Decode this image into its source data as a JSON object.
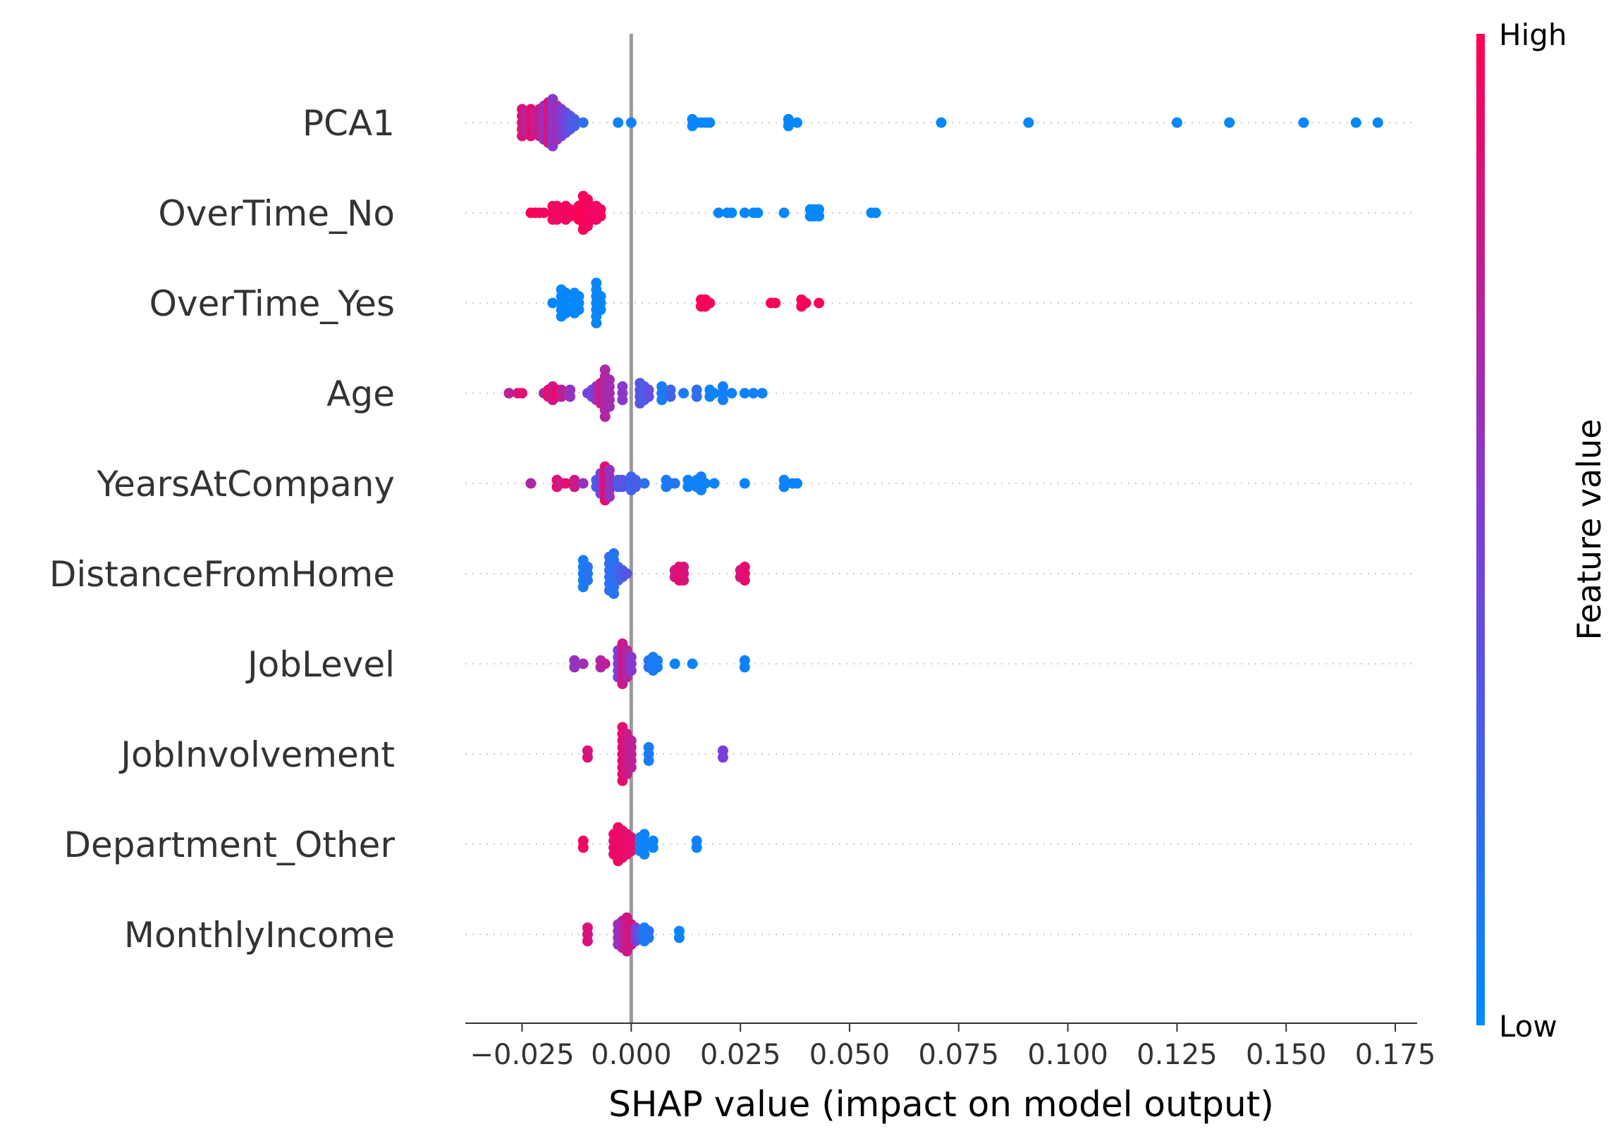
{
  "chart_data": {
    "type": "scatter",
    "title": "",
    "xlabel": "SHAP value (impact on model output)",
    "ylabel": "",
    "xlim": [
      -0.038,
      0.18
    ],
    "xticks": [
      -0.025,
      0.0,
      0.025,
      0.05,
      0.075,
      0.1,
      0.125,
      0.15,
      0.175
    ],
    "xtick_labels": [
      "−0.025",
      "0.000",
      "0.025",
      "0.050",
      "0.075",
      "0.100",
      "0.125",
      "0.150",
      "0.175"
    ],
    "zero_line": 0.0,
    "grid": false,
    "colorbar": {
      "title": "Feature value",
      "high_label": "High",
      "low_label": "Low",
      "low_color": "#008bfb",
      "mid_color": "#7b3fd9",
      "high_color": "#ff0052"
    },
    "point_encoding": "each point is [shap_value, feature_value_0_to_1, stack_count]",
    "features": [
      {
        "name": "PCA1",
        "points": [
          [
            -0.025,
            0.85,
            5
          ],
          [
            -0.024,
            0.7,
            4
          ],
          [
            -0.023,
            0.9,
            5
          ],
          [
            -0.022,
            0.75,
            4
          ],
          [
            -0.021,
            0.8,
            5
          ],
          [
            -0.02,
            0.6,
            6
          ],
          [
            -0.019,
            0.85,
            7
          ],
          [
            -0.018,
            0.55,
            8
          ],
          [
            -0.017,
            0.65,
            6
          ],
          [
            -0.016,
            0.5,
            5
          ],
          [
            -0.015,
            0.45,
            4
          ],
          [
            -0.014,
            0.35,
            3
          ],
          [
            -0.013,
            0.3,
            2
          ],
          [
            -0.011,
            0.2,
            1
          ],
          [
            -0.003,
            0.05,
            1
          ],
          [
            0.0,
            0.05,
            1
          ],
          [
            0.014,
            0.02,
            2
          ],
          [
            0.015,
            0.05,
            1
          ],
          [
            0.016,
            0.02,
            1
          ],
          [
            0.017,
            0.03,
            1
          ],
          [
            0.018,
            0.02,
            1
          ],
          [
            0.036,
            0.03,
            2
          ],
          [
            0.038,
            0.02,
            1
          ],
          [
            0.071,
            0.02,
            1
          ],
          [
            0.091,
            0.02,
            1
          ],
          [
            0.125,
            0.02,
            1
          ],
          [
            0.137,
            0.02,
            1
          ],
          [
            0.154,
            0.02,
            1
          ],
          [
            0.166,
            0.02,
            1
          ],
          [
            0.171,
            0.02,
            1
          ]
        ]
      },
      {
        "name": "OverTime_No",
        "points": [
          [
            -0.023,
            0.98,
            1
          ],
          [
            -0.022,
            0.97,
            1
          ],
          [
            -0.021,
            0.97,
            1
          ],
          [
            -0.02,
            0.95,
            1
          ],
          [
            -0.018,
            0.96,
            3
          ],
          [
            -0.017,
            0.95,
            3
          ],
          [
            -0.016,
            0.94,
            2
          ],
          [
            -0.015,
            0.95,
            3
          ],
          [
            -0.014,
            0.96,
            2
          ],
          [
            -0.012,
            0.97,
            3
          ],
          [
            -0.011,
            0.98,
            6
          ],
          [
            -0.01,
            0.96,
            5
          ],
          [
            -0.009,
            0.95,
            3
          ],
          [
            -0.008,
            0.94,
            3
          ],
          [
            -0.007,
            0.95,
            2
          ],
          [
            0.02,
            0.03,
            1
          ],
          [
            0.022,
            0.03,
            1
          ],
          [
            0.023,
            0.02,
            1
          ],
          [
            0.026,
            0.03,
            1
          ],
          [
            0.028,
            0.02,
            1
          ],
          [
            0.029,
            0.03,
            1
          ],
          [
            0.035,
            0.02,
            1
          ],
          [
            0.041,
            0.02,
            2
          ],
          [
            0.042,
            0.03,
            2
          ],
          [
            0.043,
            0.02,
            2
          ],
          [
            0.055,
            0.02,
            1
          ],
          [
            0.056,
            0.03,
            1
          ]
        ]
      },
      {
        "name": "OverTime_Yes",
        "points": [
          [
            -0.018,
            0.03,
            1
          ],
          [
            -0.016,
            0.02,
            5
          ],
          [
            -0.015,
            0.03,
            4
          ],
          [
            -0.013,
            0.02,
            4
          ],
          [
            -0.012,
            0.03,
            3
          ],
          [
            -0.008,
            0.02,
            7
          ],
          [
            -0.007,
            0.03,
            3
          ],
          [
            0.016,
            0.97,
            2
          ],
          [
            0.017,
            0.98,
            2
          ],
          [
            0.018,
            0.96,
            1
          ],
          [
            0.032,
            0.97,
            1
          ],
          [
            0.033,
            0.98,
            1
          ],
          [
            0.039,
            0.96,
            2
          ],
          [
            0.04,
            0.97,
            1
          ],
          [
            0.043,
            0.98,
            1
          ]
        ]
      },
      {
        "name": "Age",
        "points": [
          [
            -0.028,
            0.75,
            1
          ],
          [
            -0.026,
            0.85,
            1
          ],
          [
            -0.025,
            0.9,
            1
          ],
          [
            -0.02,
            0.7,
            1
          ],
          [
            -0.019,
            0.9,
            2
          ],
          [
            -0.018,
            0.8,
            3
          ],
          [
            -0.017,
            0.95,
            2
          ],
          [
            -0.016,
            0.75,
            2
          ],
          [
            -0.014,
            0.6,
            2
          ],
          [
            -0.01,
            0.5,
            1
          ],
          [
            -0.009,
            0.45,
            2
          ],
          [
            -0.008,
            0.6,
            3
          ],
          [
            -0.007,
            0.8,
            4
          ],
          [
            -0.006,
            0.7,
            8
          ],
          [
            -0.005,
            0.65,
            5
          ],
          [
            -0.002,
            0.55,
            3
          ],
          [
            0.002,
            0.35,
            4
          ],
          [
            0.003,
            0.3,
            3
          ],
          [
            0.004,
            0.4,
            2
          ],
          [
            0.007,
            0.1,
            3
          ],
          [
            0.009,
            0.25,
            2
          ],
          [
            0.012,
            0.1,
            1
          ],
          [
            0.015,
            0.2,
            2
          ],
          [
            0.018,
            0.05,
            2
          ],
          [
            0.019,
            0.05,
            1
          ],
          [
            0.021,
            0.08,
            3
          ],
          [
            0.023,
            0.05,
            1
          ],
          [
            0.026,
            0.05,
            1
          ],
          [
            0.028,
            0.08,
            1
          ],
          [
            0.03,
            0.05,
            1
          ]
        ]
      },
      {
        "name": "YearsAtCompany",
        "points": [
          [
            -0.023,
            0.7,
            1
          ],
          [
            -0.017,
            0.9,
            2
          ],
          [
            -0.016,
            0.75,
            1
          ],
          [
            -0.015,
            0.9,
            1
          ],
          [
            -0.013,
            0.8,
            2
          ],
          [
            -0.011,
            0.6,
            1
          ],
          [
            -0.008,
            0.3,
            2
          ],
          [
            -0.007,
            0.5,
            4
          ],
          [
            -0.006,
            0.9,
            6
          ],
          [
            -0.005,
            0.6,
            5
          ],
          [
            -0.003,
            0.3,
            2
          ],
          [
            -0.002,
            0.35,
            2
          ],
          [
            0.0,
            0.25,
            3
          ],
          [
            0.001,
            0.3,
            2
          ],
          [
            0.003,
            0.2,
            1
          ],
          [
            0.008,
            0.1,
            2
          ],
          [
            0.009,
            0.12,
            1
          ],
          [
            0.01,
            0.15,
            1
          ],
          [
            0.013,
            0.05,
            2
          ],
          [
            0.015,
            0.05,
            2
          ],
          [
            0.016,
            0.08,
            3
          ],
          [
            0.017,
            0.05,
            1
          ],
          [
            0.019,
            0.05,
            1
          ],
          [
            0.026,
            0.05,
            1
          ],
          [
            0.035,
            0.05,
            2
          ],
          [
            0.037,
            0.06,
            1
          ],
          [
            0.038,
            0.04,
            1
          ]
        ]
      },
      {
        "name": "DistanceFromHome",
        "points": [
          [
            -0.011,
            0.1,
            5
          ],
          [
            -0.01,
            0.15,
            3
          ],
          [
            -0.005,
            0.2,
            6
          ],
          [
            -0.004,
            0.15,
            7
          ],
          [
            -0.003,
            0.25,
            3
          ],
          [
            -0.002,
            0.3,
            2
          ],
          [
            -0.001,
            0.35,
            1
          ],
          [
            0.01,
            0.8,
            2
          ],
          [
            0.011,
            0.9,
            3
          ],
          [
            0.012,
            0.85,
            3
          ],
          [
            0.025,
            0.85,
            2
          ],
          [
            0.026,
            0.9,
            3
          ]
        ]
      },
      {
        "name": "JobLevel",
        "points": [
          [
            -0.013,
            0.6,
            2
          ],
          [
            -0.011,
            0.65,
            1
          ],
          [
            -0.007,
            0.7,
            2
          ],
          [
            -0.006,
            0.75,
            1
          ],
          [
            -0.003,
            0.5,
            5
          ],
          [
            -0.002,
            0.8,
            7
          ],
          [
            -0.001,
            0.7,
            5
          ],
          [
            0.0,
            0.55,
            3
          ],
          [
            0.004,
            0.15,
            2
          ],
          [
            0.005,
            0.1,
            3
          ],
          [
            0.006,
            0.1,
            2
          ],
          [
            0.01,
            0.05,
            1
          ],
          [
            0.014,
            0.05,
            1
          ],
          [
            0.026,
            0.05,
            2
          ]
        ]
      },
      {
        "name": "JobInvolvement",
        "points": [
          [
            -0.01,
            0.85,
            2
          ],
          [
            -0.002,
            0.9,
            9
          ],
          [
            -0.001,
            0.8,
            7
          ],
          [
            0.0,
            0.75,
            5
          ],
          [
            0.004,
            0.1,
            3
          ],
          [
            0.021,
            0.5,
            2
          ]
        ]
      },
      {
        "name": "Department_Other",
        "points": [
          [
            -0.011,
            0.95,
            2
          ],
          [
            -0.004,
            0.9,
            4
          ],
          [
            -0.003,
            0.95,
            6
          ],
          [
            -0.002,
            0.92,
            5
          ],
          [
            -0.001,
            0.9,
            4
          ],
          [
            0.0,
            0.9,
            3
          ],
          [
            0.002,
            0.1,
            3
          ],
          [
            0.003,
            0.05,
            4
          ],
          [
            0.005,
            0.05,
            2
          ],
          [
            0.015,
            0.05,
            2
          ]
        ]
      },
      {
        "name": "MonthlyIncome",
        "points": [
          [
            -0.01,
            0.85,
            3
          ],
          [
            -0.003,
            0.6,
            4
          ],
          [
            -0.002,
            0.7,
            5
          ],
          [
            -0.001,
            0.8,
            6
          ],
          [
            0.0,
            0.85,
            4
          ],
          [
            0.001,
            0.5,
            3
          ],
          [
            0.002,
            0.3,
            2
          ],
          [
            0.003,
            0.1,
            3
          ],
          [
            0.004,
            0.15,
            2
          ],
          [
            0.011,
            0.05,
            2
          ]
        ]
      }
    ]
  }
}
